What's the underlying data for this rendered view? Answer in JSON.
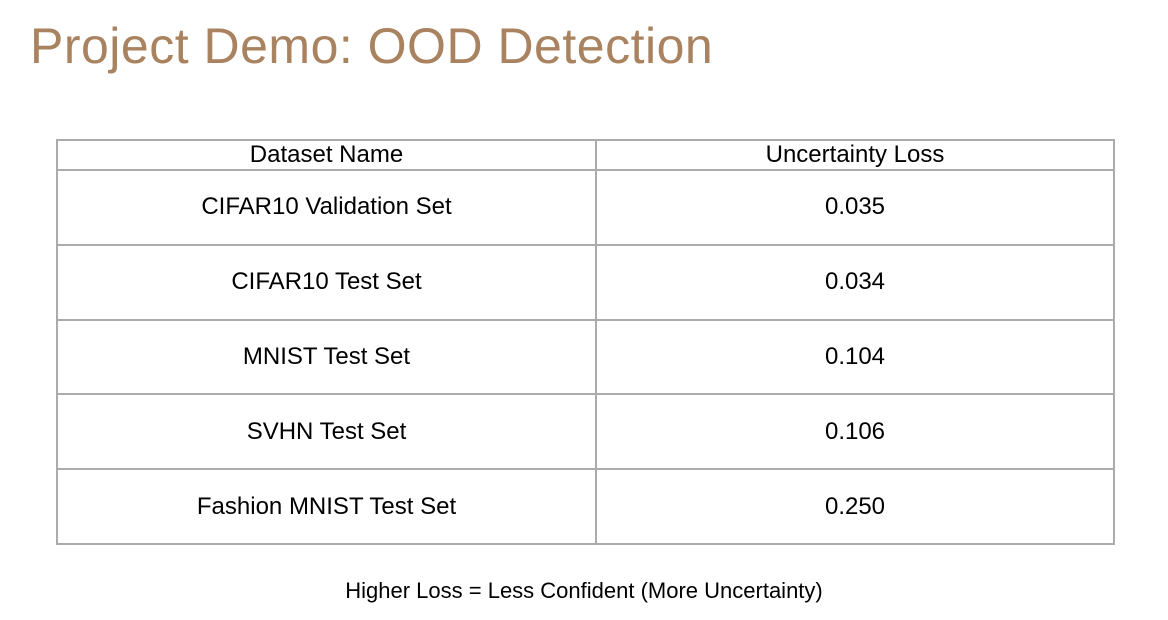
{
  "slide": {
    "title": "Project Demo: OOD Detection",
    "caption": "Higher Loss = Less Confident (More Uncertainty)"
  },
  "table": {
    "columns": [
      "Dataset Name",
      "Uncertainty Loss"
    ],
    "rows": [
      {
        "dataset": "CIFAR10 Validation Set",
        "loss": "0.035"
      },
      {
        "dataset": "CIFAR10 Test Set",
        "loss": "0.034"
      },
      {
        "dataset": "MNIST Test Set",
        "loss": "0.104"
      },
      {
        "dataset": "SVHN Test Set",
        "loss": "0.106"
      },
      {
        "dataset": "Fashion MNIST Test Set",
        "loss": "0.250"
      }
    ]
  },
  "colors": {
    "title_text": "#a9825f",
    "table_border": "#ababab",
    "body_text": "#000000",
    "background": "#ffffff"
  }
}
